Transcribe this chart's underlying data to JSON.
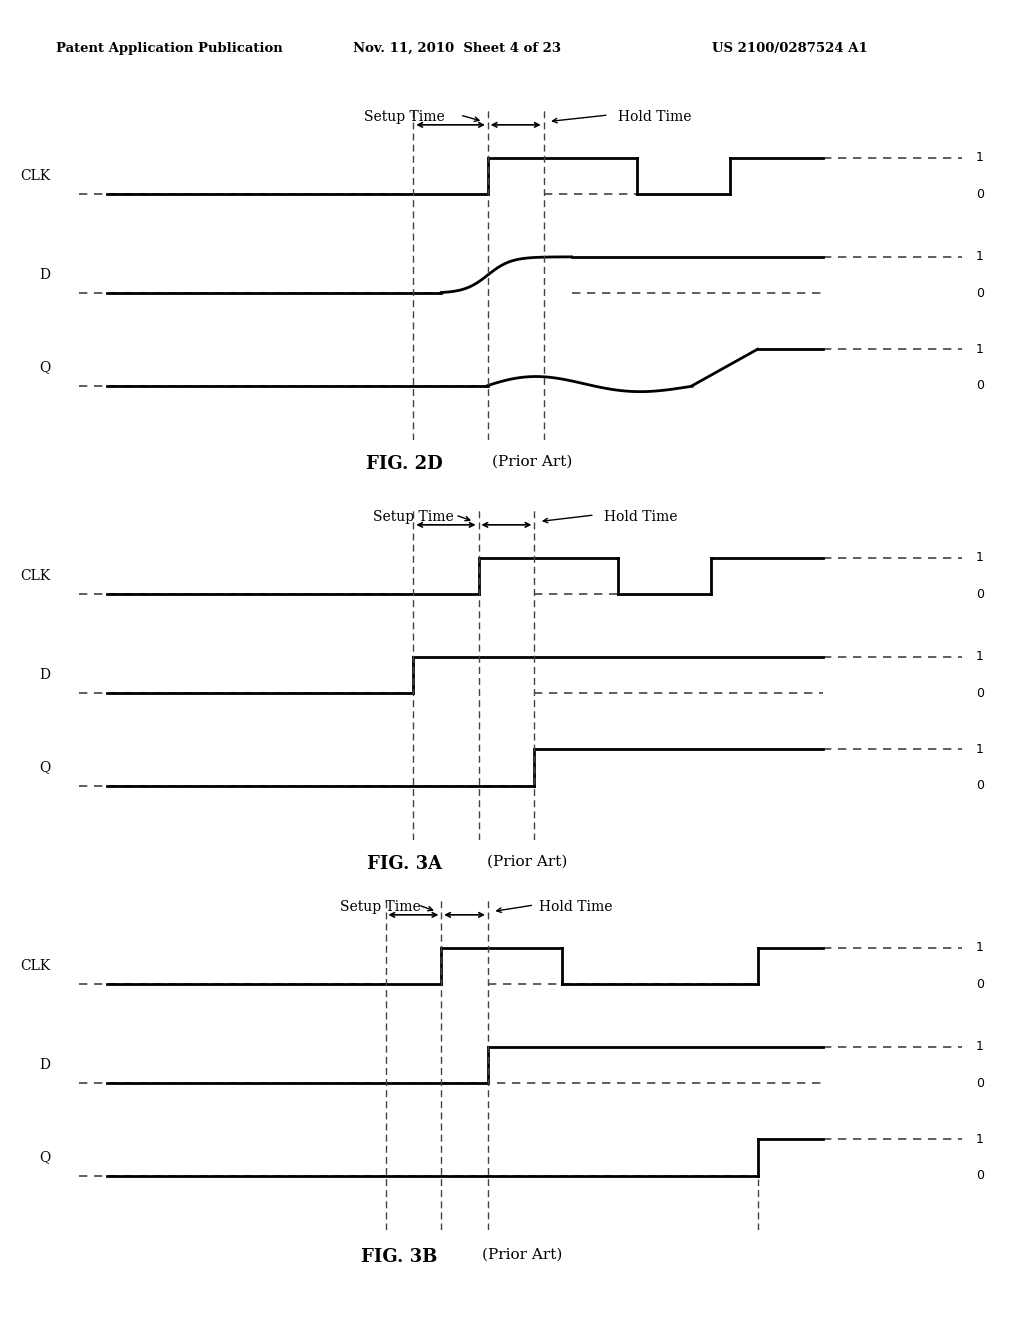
{
  "header_left": "Patent Application Publication",
  "header_mid": "Nov. 11, 2010  Sheet 4 of 23",
  "header_right": "US 2100/0287524 A1",
  "fig2d_label": "FIG. 2D",
  "fig3a_label": "FIG. 3A",
  "fig3b_label": "FIG. 3B",
  "prior_art": "(Prior Art)",
  "bg_color": "#ffffff"
}
